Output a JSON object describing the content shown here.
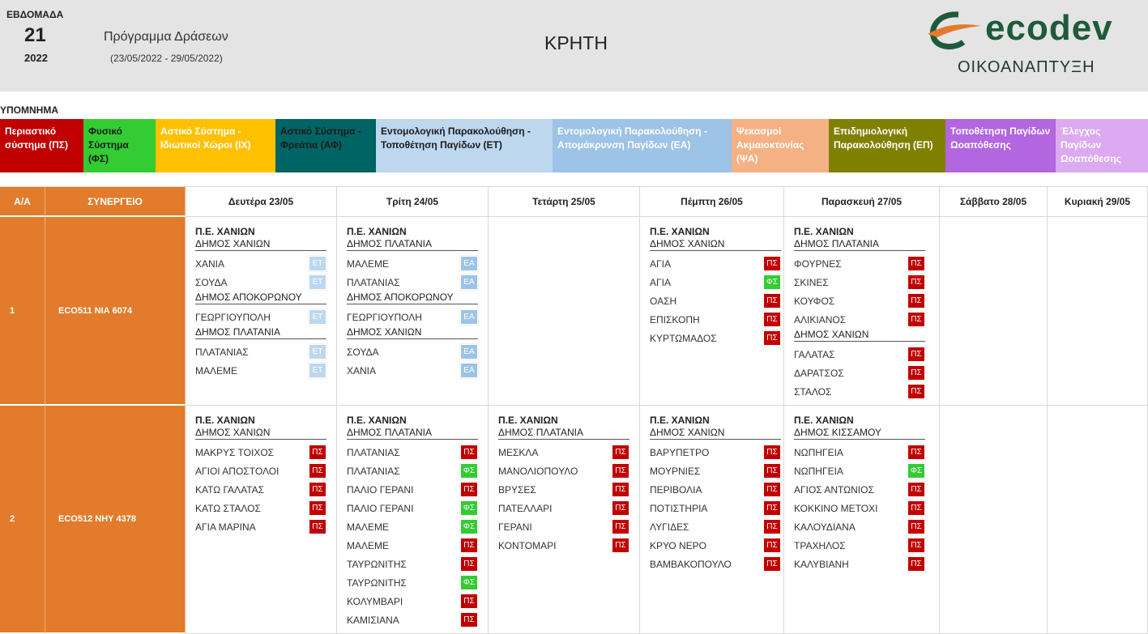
{
  "header": {
    "week_label": "ΕΒΔΟΜΑΔΑ",
    "week": "21",
    "year": "2022",
    "title": "Πρόγραμμα Δράσεων",
    "dates": "(23/05/2022 - 29/05/2022)",
    "region": "ΚΡΗΤΗ",
    "logo": "ecodev",
    "logo_sub": "ΟΙΚΟΑΝΑΠΤΥΞΗ"
  },
  "legend": {
    "title": "ΥΠΟΜΝΗΜΑ",
    "items": [
      {
        "label": "Περιαστικό σύστημα (ΠΣ)",
        "color": "#c00000",
        "text_color": "#ffffff"
      },
      {
        "label": "Φυσικό Σύστημα (ΦΣ)",
        "color": "#33cc33",
        "text_color": "#1a1a1a"
      },
      {
        "label": "Αστικό Σύστημα - Ιδιωτικοί Χώροι (ΙΧ)",
        "color": "#ffc000",
        "text_color": "#ffffff"
      },
      {
        "label": "Αστικό Σύστημα - Φρεάτια (ΑΦ)",
        "color": "#006464",
        "text_color": "#1a1a1a"
      },
      {
        "label": "Εντομολογική Παρακολούθηση - Τοποθέτηση Παγίδων (ΕΤ)",
        "color": "#bdd7ee",
        "text_color": "#1a1a1a"
      },
      {
        "label": "Εντομολογική Παρακολούθηση - Απομάκρυνση Παγίδων (ΕΑ)",
        "color": "#9dc3e6",
        "text_color": "#ffffff"
      },
      {
        "label": "Ψεκασμοί Ακμαιοκτονίας (ΨΑ)",
        "color": "#f4b183",
        "text_color": "#ffffff"
      },
      {
        "label": "Επιδημιολογική Παρακολούθηση (ΕΠ)",
        "color": "#808000",
        "text_color": "#ffffff"
      },
      {
        "label": "Τοποθέτηση Παγίδων Ωοαπόθεσης",
        "color": "#b266e0",
        "text_color": "#ffffff"
      },
      {
        "label": "Έλεγχος Παγίδων Ωοαπόθεσης",
        "color": "#dcaaf0",
        "text_color": "#ffffff"
      }
    ]
  },
  "badge_colors": {
    "ΠΣ": "#c00000",
    "ΦΣ": "#33cc33",
    "ΕΤ": "#bdd7ee",
    "ΕΑ": "#9dc3e6"
  },
  "table": {
    "columns": [
      "Α/Α",
      "ΣΥΝΕΡΓΕΙΟ",
      "Δευτέρα 23/05",
      "Τρίτη 24/05",
      "Τετάρτη 25/05",
      "Πέμπτη 26/05",
      "Παρασκευή 27/05",
      "Σάββατο 28/05",
      "Κυριακή 29/05"
    ],
    "rows": [
      {
        "num": "1",
        "team": "ECO511  ΝΙΑ 6074",
        "days": [
          {
            "region": "Π.Ε. ΧΑΝΙΩΝ",
            "municipalities": [
              {
                "name": "ΔΗΜΟΣ ΧΑΝΙΩΝ",
                "entries": [
                  {
                    "place": "ΧΑΝΙΑ",
                    "code": "ΕΤ"
                  },
                  {
                    "place": "ΣΟΥΔΑ",
                    "code": "ΕΤ"
                  }
                ]
              },
              {
                "name": "ΔΗΜΟΣ ΑΠΟΚΟΡΩΝΟΥ",
                "entries": [
                  {
                    "place": "ΓΕΩΡΓΙΟΥΠΟΛΗ",
                    "code": "ΕΤ"
                  }
                ]
              },
              {
                "name": "ΔΗΜΟΣ ΠΛΑΤΑΝΙΑ",
                "entries": [
                  {
                    "place": "ΠΛΑΤΑΝΙΑΣ",
                    "code": "ΕΤ"
                  },
                  {
                    "place": "ΜΑΛΕΜΕ",
                    "code": "ΕΤ"
                  }
                ]
              }
            ]
          },
          {
            "region": "Π.Ε. ΧΑΝΙΩΝ",
            "municipalities": [
              {
                "name": "ΔΗΜΟΣ ΠΛΑΤΑΝΙΑ",
                "entries": [
                  {
                    "place": "ΜΑΛΕΜΕ",
                    "code": "ΕΑ"
                  },
                  {
                    "place": "ΠΛΑΤΑΝΙΑΣ",
                    "code": "ΕΑ"
                  }
                ]
              },
              {
                "name": "ΔΗΜΟΣ ΑΠΟΚΟΡΩΝΟΥ",
                "entries": [
                  {
                    "place": "ΓΕΩΡΓΙΟΥΠΟΛΗ",
                    "code": "ΕΑ"
                  }
                ]
              },
              {
                "name": "ΔΗΜΟΣ ΧΑΝΙΩΝ",
                "entries": [
                  {
                    "place": "ΣΟΥΔΑ",
                    "code": "ΕΑ"
                  },
                  {
                    "place": "ΧΑΝΙΑ",
                    "code": "ΕΑ"
                  }
                ]
              }
            ]
          },
          null,
          {
            "region": "Π.Ε. ΧΑΝΙΩΝ",
            "municipalities": [
              {
                "name": "ΔΗΜΟΣ ΧΑΝΙΩΝ",
                "entries": [
                  {
                    "place": "ΑΓΙΑ",
                    "code": "ΠΣ"
                  },
                  {
                    "place": "ΑΓΙΑ",
                    "code": "ΦΣ"
                  },
                  {
                    "place": "ΟΑΣΗ",
                    "code": "ΠΣ"
                  },
                  {
                    "place": "ΕΠΙΣΚΟΠΗ",
                    "code": "ΠΣ"
                  },
                  {
                    "place": "ΚΥΡΤΩΜΑΔΟΣ",
                    "code": "ΠΣ"
                  }
                ]
              }
            ]
          },
          {
            "region": "Π.Ε. ΧΑΝΙΩΝ",
            "municipalities": [
              {
                "name": "ΔΗΜΟΣ ΠΛΑΤΑΝΙΑ",
                "entries": [
                  {
                    "place": "ΦΟΥΡΝΕΣ",
                    "code": "ΠΣ"
                  },
                  {
                    "place": "ΣΚΙΝΕΣ",
                    "code": "ΠΣ"
                  },
                  {
                    "place": "ΚΟΥΦΟΣ",
                    "code": "ΠΣ"
                  },
                  {
                    "place": "ΑΛΙΚΙΑΝΟΣ",
                    "code": "ΠΣ"
                  }
                ]
              },
              {
                "name": "ΔΗΜΟΣ ΧΑΝΙΩΝ",
                "entries": [
                  {
                    "place": "ΓΑΛΑΤΑΣ",
                    "code": "ΠΣ"
                  },
                  {
                    "place": "ΔΑΡΑΤΣΟΣ",
                    "code": "ΠΣ"
                  },
                  {
                    "place": "ΣΤΑΛΟΣ",
                    "code": "ΠΣ"
                  }
                ]
              }
            ]
          },
          null,
          null
        ]
      },
      {
        "num": "2",
        "team": "ECO512  ΝΗΥ 4378",
        "days": [
          {
            "region": "Π.Ε. ΧΑΝΙΩΝ",
            "municipalities": [
              {
                "name": "ΔΗΜΟΣ ΧΑΝΙΩΝ",
                "entries": [
                  {
                    "place": "ΜΑΚΡΥΣ ΤΟΙΧΟΣ",
                    "code": "ΠΣ"
                  },
                  {
                    "place": "ΑΓΙΟΙ ΑΠΟΣΤΟΛΟΙ",
                    "code": "ΠΣ"
                  },
                  {
                    "place": "ΚΑΤΩ ΓΑΛΑΤΑΣ",
                    "code": "ΠΣ"
                  },
                  {
                    "place": "ΚΑΤΩ ΣΤΑΛΟΣ",
                    "code": "ΠΣ"
                  },
                  {
                    "place": "ΑΓΙΑ ΜΑΡΙΝΑ",
                    "code": "ΠΣ"
                  }
                ]
              }
            ]
          },
          {
            "region": "Π.Ε. ΧΑΝΙΩΝ",
            "municipalities": [
              {
                "name": "ΔΗΜΟΣ ΠΛΑΤΑΝΙΑ",
                "entries": [
                  {
                    "place": "ΠΛΑΤΑΝΙΑΣ",
                    "code": "ΠΣ"
                  },
                  {
                    "place": "ΠΛΑΤΑΝΙΑΣ",
                    "code": "ΦΣ"
                  },
                  {
                    "place": "ΠΑΛΙΟ ΓΕΡΑΝΙ",
                    "code": "ΠΣ"
                  },
                  {
                    "place": "ΠΑΛΙΟ ΓΕΡΑΝΙ",
                    "code": "ΦΣ"
                  },
                  {
                    "place": "ΜΑΛΕΜΕ",
                    "code": "ΦΣ"
                  },
                  {
                    "place": "ΜΑΛΕΜΕ",
                    "code": "ΠΣ"
                  },
                  {
                    "place": "ΤΑΥΡΩΝΙΤΗΣ",
                    "code": "ΠΣ"
                  },
                  {
                    "place": "ΤΑΥΡΩΝΙΤΗΣ",
                    "code": "ΦΣ"
                  },
                  {
                    "place": "ΚΟΛΥΜΒΑΡΙ",
                    "code": "ΠΣ"
                  },
                  {
                    "place": "ΚΑΜΙΣΙΑΝΑ",
                    "code": "ΠΣ"
                  }
                ]
              }
            ]
          },
          {
            "region": "Π.Ε. ΧΑΝΙΩΝ",
            "municipalities": [
              {
                "name": "ΔΗΜΟΣ ΠΛΑΤΑΝΙΑ",
                "entries": [
                  {
                    "place": "ΜΕΣΚΛΑ",
                    "code": "ΠΣ"
                  },
                  {
                    "place": "ΜΑΝΟΛΙΟΠΟΥΛΟ",
                    "code": "ΠΣ"
                  },
                  {
                    "place": "ΒΡΥΣΕΣ",
                    "code": "ΠΣ"
                  },
                  {
                    "place": "ΠΑΤΕΛΛΑΡΙ",
                    "code": "ΠΣ"
                  },
                  {
                    "place": "ΓΕΡΑΝΙ",
                    "code": "ΠΣ"
                  },
                  {
                    "place": "ΚΟΝΤΟΜΑΡΙ",
                    "code": "ΠΣ"
                  }
                ]
              }
            ]
          },
          {
            "region": "Π.Ε. ΧΑΝΙΩΝ",
            "municipalities": [
              {
                "name": "ΔΗΜΟΣ ΧΑΝΙΩΝ",
                "entries": [
                  {
                    "place": "ΒΑΡΥΠΕΤΡΟ",
                    "code": "ΠΣ"
                  },
                  {
                    "place": "ΜΟΥΡΝΙΕΣ",
                    "code": "ΠΣ"
                  },
                  {
                    "place": "ΠΕΡΙΒΟΛΙΑ",
                    "code": "ΠΣ"
                  },
                  {
                    "place": "ΠΟΤΙΣΤΗΡΙΑ",
                    "code": "ΠΣ"
                  },
                  {
                    "place": "ΛΥΓΙΔΕΣ",
                    "code": "ΠΣ"
                  },
                  {
                    "place": "ΚΡΥΟ ΝΕΡΟ",
                    "code": "ΠΣ"
                  },
                  {
                    "place": "ΒΑΜΒΑΚΟΠΟΥΛΟ",
                    "code": "ΠΣ"
                  }
                ]
              }
            ]
          },
          {
            "region": "Π.Ε. ΧΑΝΙΩΝ",
            "municipalities": [
              {
                "name": "ΔΗΜΟΣ ΚΙΣΣΑΜΟΥ",
                "entries": [
                  {
                    "place": "ΝΩΠΗΓΕΙΑ",
                    "code": "ΠΣ"
                  },
                  {
                    "place": "ΝΩΠΗΓΕΙΑ",
                    "code": "ΦΣ"
                  },
                  {
                    "place": "ΑΓΙΟΣ ΑΝΤΩΝΙΟΣ",
                    "code": "ΠΣ"
                  },
                  {
                    "place": "ΚΟΚΚΙΝΟ ΜΕΤΟΧΙ",
                    "code": "ΠΣ"
                  },
                  {
                    "place": "ΚΑΛΟΥΔΙΑΝΑ",
                    "code": "ΠΣ"
                  },
                  {
                    "place": "ΤΡΑΧΗΛΟΣ",
                    "code": "ΠΣ"
                  },
                  {
                    "place": "ΚΑΛΥΒΙΑΝΗ",
                    "code": "ΠΣ"
                  }
                ]
              }
            ]
          },
          null,
          null
        ]
      }
    ]
  }
}
